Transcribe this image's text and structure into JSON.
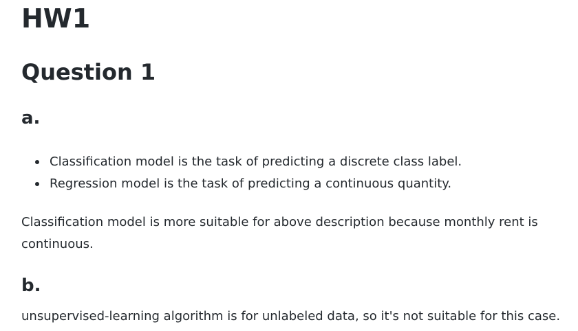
{
  "title": "HW1",
  "question": {
    "heading": "Question 1",
    "part_a": {
      "label": "a.",
      "bullets": [
        "Classification model is the task of predicting a discrete class label.",
        "Regression model is the task of predicting a continuous quantity."
      ],
      "paragraph": "Classification model is more suitable for above description because monthly rent is continuous."
    },
    "part_b": {
      "label": "b.",
      "paragraph": "unsupervised-learning algorithm is for unlabeled data, so it's not suitable for this case."
    }
  }
}
